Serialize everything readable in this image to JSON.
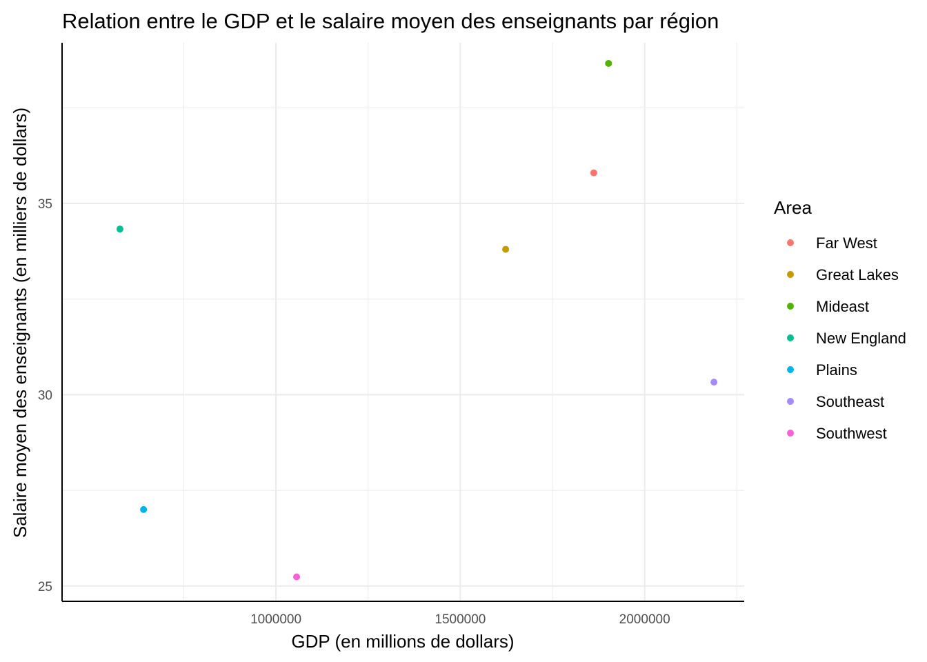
{
  "chart_data": {
    "type": "scatter",
    "title": "Relation entre le GDP et le salaire moyen des enseignants par région",
    "xlabel": "GDP (en millions de dollars)",
    "ylabel": "Salaire moyen des enseignants (en milliers de dollars)",
    "xlim": [
      420000,
      2270000
    ],
    "ylim": [
      24.6,
      39.2
    ],
    "x_ticks": [
      1000000,
      1500000,
      2000000
    ],
    "x_tick_labels": [
      "1000000",
      "1500000",
      "2000000"
    ],
    "y_ticks": [
      25,
      30,
      35
    ],
    "y_tick_labels": [
      "25",
      "30",
      "35"
    ],
    "grid": true,
    "legend_title": "Area",
    "legend_position": "right",
    "series": [
      {
        "name": "Far West",
        "color": "#F8766D",
        "x": 1862000,
        "y": 35.8
      },
      {
        "name": "Great Lakes",
        "color": "#C49A00",
        "x": 1623000,
        "y": 33.8
      },
      {
        "name": "Mideast",
        "color": "#53B400",
        "x": 1902000,
        "y": 38.66
      },
      {
        "name": "New England",
        "color": "#00C094",
        "x": 577000,
        "y": 34.33
      },
      {
        "name": "Plains",
        "color": "#00B6EB",
        "x": 641000,
        "y": 27.0
      },
      {
        "name": "Southeast",
        "color": "#A58AFF",
        "x": 2188000,
        "y": 30.33
      },
      {
        "name": "Southwest",
        "color": "#FB61D7",
        "x": 1056000,
        "y": 25.24
      }
    ]
  }
}
